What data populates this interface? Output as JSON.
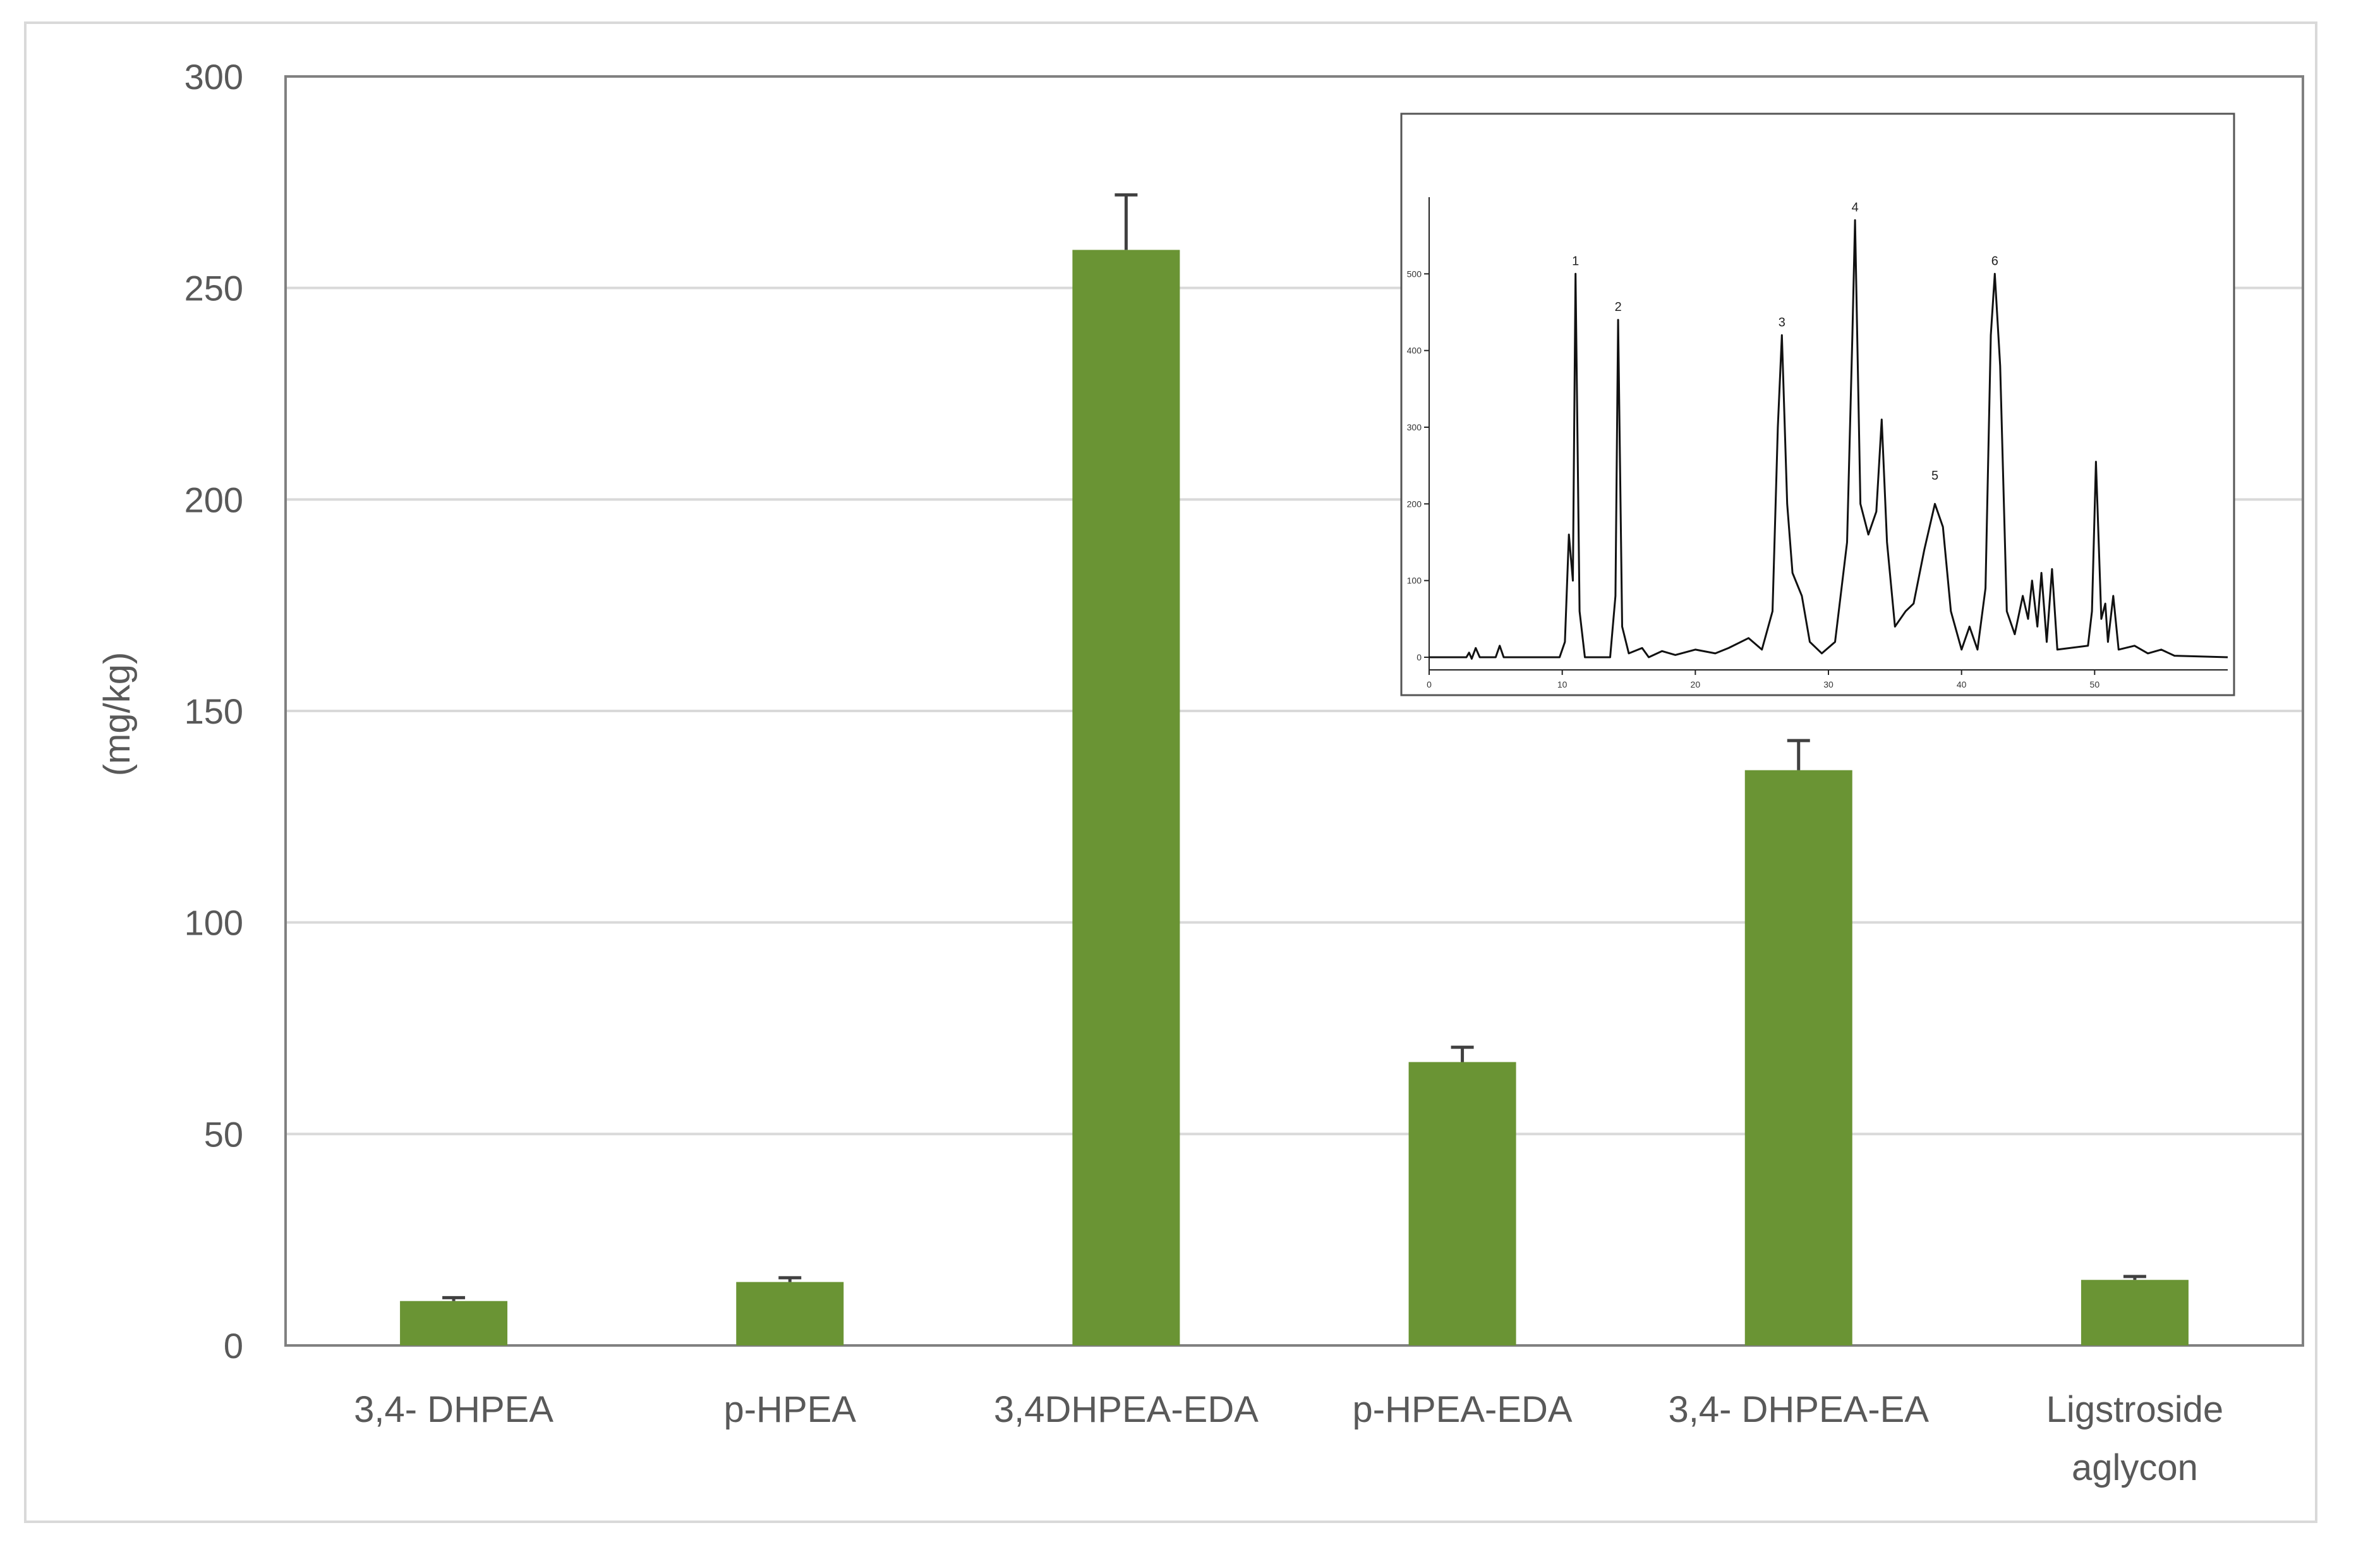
{
  "chart_data": {
    "type": "bar",
    "ylabel": "(mg/kg)",
    "ylim": [
      0,
      300
    ],
    "yticks": [
      "0",
      "50",
      "100",
      "150",
      "200",
      "250",
      "300"
    ],
    "categories": [
      "3,4- DHPEA",
      "p-HPEA",
      "3,4DHPEA-EDA",
      "p-HPEA-EDA",
      "3,4- DHPEA-EA",
      "Ligstroside aglycon"
    ],
    "category_lines": [
      [
        "3,4- DHPEA"
      ],
      [
        "p-HPEA"
      ],
      [
        "3,4DHPEA-EDA"
      ],
      [
        "p-HPEA-EDA"
      ],
      [
        "3,4- DHPEA-EA"
      ],
      [
        "Ligstroside",
        "aglycon"
      ]
    ],
    "values": [
      10.5,
      15,
      259,
      67,
      136,
      15.5
    ],
    "errors": [
      0.8,
      1.0,
      13,
      3.5,
      7,
      0.8
    ],
    "bar_color": "#6a9434",
    "error_color": "#404040",
    "grid": true,
    "legend": "none",
    "inset": {
      "type": "line",
      "description_free": true,
      "xlim": [
        0,
        60
      ],
      "ylim": [
        0,
        600
      ],
      "xticks": [
        "0",
        "10",
        "20",
        "30",
        "40",
        "50"
      ],
      "yticks": [
        "0",
        "100",
        "200",
        "300",
        "400",
        "500"
      ],
      "peak_labels": [
        {
          "label": "1",
          "x": 11.0,
          "y": 500
        },
        {
          "label": "2",
          "x": 14.2,
          "y": 440
        },
        {
          "label": "3",
          "x": 26.5,
          "y": 420
        },
        {
          "label": "4",
          "x": 32.0,
          "y": 570
        },
        {
          "label": "5",
          "x": 38.0,
          "y": 220
        },
        {
          "label": "6",
          "x": 42.5,
          "y": 500
        }
      ],
      "trace": [
        [
          0,
          0
        ],
        [
          2.8,
          0
        ],
        [
          3.0,
          6
        ],
        [
          3.2,
          -2
        ],
        [
          3.5,
          12
        ],
        [
          3.8,
          0
        ],
        [
          5.0,
          0
        ],
        [
          5.3,
          15
        ],
        [
          5.6,
          0
        ],
        [
          9.8,
          0
        ],
        [
          10.2,
          20
        ],
        [
          10.5,
          160
        ],
        [
          10.8,
          100
        ],
        [
          11.0,
          500
        ],
        [
          11.3,
          60
        ],
        [
          11.7,
          0
        ],
        [
          13.6,
          0
        ],
        [
          14.0,
          80
        ],
        [
          14.2,
          440
        ],
        [
          14.5,
          40
        ],
        [
          15.0,
          5
        ],
        [
          16.0,
          12
        ],
        [
          16.5,
          0
        ],
        [
          17.5,
          8
        ],
        [
          18.5,
          3
        ],
        [
          20,
          10
        ],
        [
          21.5,
          5
        ],
        [
          22.5,
          12
        ],
        [
          24,
          25
        ],
        [
          25,
          10
        ],
        [
          25.8,
          60
        ],
        [
          26.2,
          300
        ],
        [
          26.5,
          420
        ],
        [
          26.9,
          200
        ],
        [
          27.3,
          110
        ],
        [
          28,
          80
        ],
        [
          28.6,
          20
        ],
        [
          29.5,
          5
        ],
        [
          30.5,
          20
        ],
        [
          31.4,
          150
        ],
        [
          31.8,
          420
        ],
        [
          32.0,
          570
        ],
        [
          32.4,
          200
        ],
        [
          33,
          160
        ],
        [
          33.6,
          190
        ],
        [
          34.0,
          310
        ],
        [
          34.4,
          150
        ],
        [
          35,
          40
        ],
        [
          35.8,
          60
        ],
        [
          36.4,
          70
        ],
        [
          37.2,
          140
        ],
        [
          38.0,
          200
        ],
        [
          38.6,
          170
        ],
        [
          39.2,
          60
        ],
        [
          40,
          10
        ],
        [
          40.6,
          40
        ],
        [
          41.2,
          10
        ],
        [
          41.8,
          90
        ],
        [
          42.2,
          420
        ],
        [
          42.5,
          500
        ],
        [
          42.9,
          380
        ],
        [
          43.4,
          60
        ],
        [
          44,
          30
        ],
        [
          44.6,
          80
        ],
        [
          45.0,
          50
        ],
        [
          45.3,
          100
        ],
        [
          45.7,
          40
        ],
        [
          46.0,
          110
        ],
        [
          46.4,
          20
        ],
        [
          46.8,
          115
        ],
        [
          47.2,
          10
        ],
        [
          49.5,
          15
        ],
        [
          49.8,
          60
        ],
        [
          50.1,
          255
        ],
        [
          50.5,
          50
        ],
        [
          50.8,
          70
        ],
        [
          51.0,
          20
        ],
        [
          51.4,
          80
        ],
        [
          51.8,
          10
        ],
        [
          53,
          15
        ],
        [
          54,
          5
        ],
        [
          55,
          10
        ],
        [
          56,
          2
        ],
        [
          60,
          0
        ]
      ]
    }
  }
}
